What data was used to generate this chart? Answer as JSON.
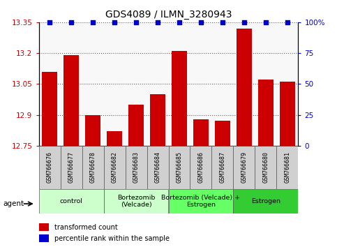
{
  "title": "GDS4089 / ILMN_3280943",
  "samples": [
    "GSM766676",
    "GSM766677",
    "GSM766678",
    "GSM766682",
    "GSM766683",
    "GSM766684",
    "GSM766685",
    "GSM766686",
    "GSM766687",
    "GSM766679",
    "GSM766680",
    "GSM766681"
  ],
  "bar_values": [
    13.11,
    13.19,
    12.9,
    12.82,
    12.95,
    13.0,
    13.21,
    12.88,
    12.87,
    13.32,
    13.07,
    13.06
  ],
  "percentile_values": [
    100,
    100,
    100,
    100,
    100,
    100,
    100,
    100,
    100,
    100,
    100,
    100
  ],
  "bar_color": "#cc0000",
  "percentile_color": "#0000cc",
  "ylim_left": [
    12.75,
    13.35
  ],
  "ylim_right": [
    0,
    100
  ],
  "yticks_left": [
    12.75,
    12.9,
    13.05,
    13.2,
    13.35
  ],
  "yticks_right": [
    0,
    25,
    50,
    75,
    100
  ],
  "groups": [
    {
      "label": "control",
      "start": 0,
      "end": 3,
      "color": "#ccffcc"
    },
    {
      "label": "Bortezomib\n(Velcade)",
      "start": 3,
      "end": 6,
      "color": "#ccffcc"
    },
    {
      "label": "Bortezomib (Velcade) +\nEstrogen",
      "start": 6,
      "end": 9,
      "color": "#66ff66"
    },
    {
      "label": "Estrogen",
      "start": 9,
      "end": 12,
      "color": "#33cc33"
    }
  ],
  "agent_label": "agent",
  "legend_items": [
    {
      "color": "#cc0000",
      "label": "transformed count"
    },
    {
      "color": "#0000cc",
      "label": "percentile rank within the sample"
    }
  ],
  "bar_width": 0.7,
  "plot_bg": "#f8f8f8",
  "sample_box_color": "#d0d0d0",
  "background_color": "#ffffff"
}
